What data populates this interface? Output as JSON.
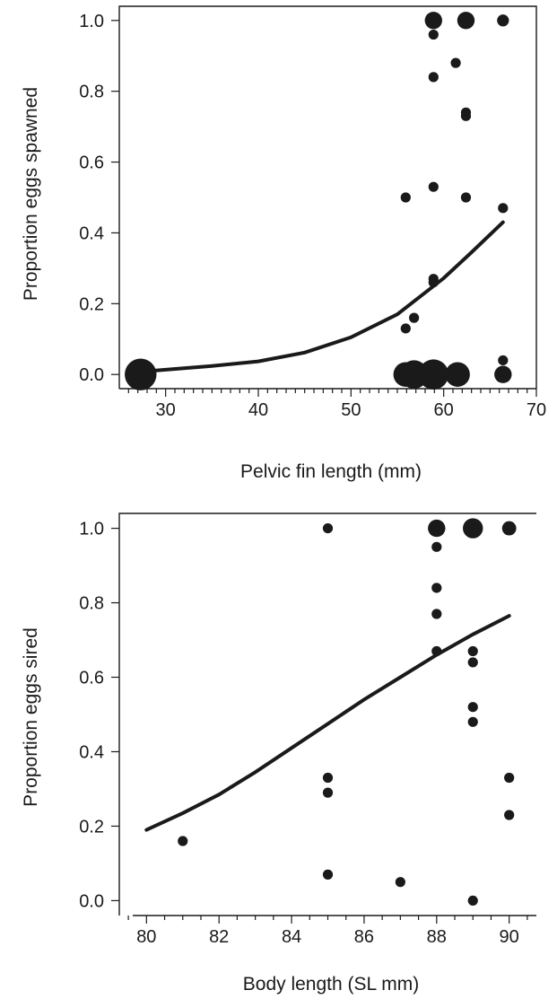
{
  "chart_data": [
    {
      "type": "scatter",
      "title": "",
      "xlabel": "Pelvic fin length (mm)",
      "ylabel": "Proportion eggs spawned",
      "xlim": [
        25,
        70
      ],
      "ylim": [
        -0.04,
        1.04
      ],
      "xticks": [
        "30",
        "40",
        "50",
        "60",
        "70"
      ],
      "xtick_values": [
        30,
        40,
        50,
        60,
        70
      ],
      "yticks": [
        "0.0",
        "0.2",
        "0.4",
        "0.6",
        "0.8",
        "1.0"
      ],
      "ytick_values": [
        0,
        0.2,
        0.4,
        0.6,
        0.8,
        1.0
      ],
      "minor_xticks": [
        26,
        27,
        28,
        29,
        31,
        32,
        33,
        34,
        35,
        36,
        37,
        38,
        39,
        41,
        42,
        43,
        44,
        45,
        46,
        47,
        48,
        49,
        51,
        52,
        53,
        54,
        55,
        56,
        57,
        58,
        59,
        61,
        62,
        63,
        64,
        65,
        66,
        67,
        68,
        69
      ],
      "grid": false,
      "frame": "left-top-right",
      "points": [
        {
          "x": 27.3,
          "y": 0.0,
          "n": 10
        },
        {
          "x": 55.9,
          "y": 0.0,
          "n": 6
        },
        {
          "x": 56.8,
          "y": 0.0,
          "n": 8
        },
        {
          "x": 58.9,
          "y": 0.0,
          "n": 9
        },
        {
          "x": 61.5,
          "y": 0.0,
          "n": 6
        },
        {
          "x": 66.4,
          "y": 0.0,
          "n": 3
        },
        {
          "x": 58.9,
          "y": 1.0,
          "n": 3
        },
        {
          "x": 62.4,
          "y": 1.0,
          "n": 3
        },
        {
          "x": 66.4,
          "y": 1.0,
          "n": 1.4
        },
        {
          "x": 58.9,
          "y": 0.96,
          "n": 1
        },
        {
          "x": 61.3,
          "y": 0.88,
          "n": 1
        },
        {
          "x": 58.9,
          "y": 0.84,
          "n": 1
        },
        {
          "x": 62.4,
          "y": 0.74,
          "n": 1
        },
        {
          "x": 62.4,
          "y": 0.73,
          "n": 1
        },
        {
          "x": 58.9,
          "y": 0.53,
          "n": 1
        },
        {
          "x": 55.9,
          "y": 0.5,
          "n": 1
        },
        {
          "x": 62.4,
          "y": 0.5,
          "n": 1
        },
        {
          "x": 66.4,
          "y": 0.47,
          "n": 1
        },
        {
          "x": 58.9,
          "y": 0.27,
          "n": 1
        },
        {
          "x": 58.9,
          "y": 0.26,
          "n": 1
        },
        {
          "x": 56.8,
          "y": 0.16,
          "n": 1
        },
        {
          "x": 55.9,
          "y": 0.13,
          "n": 1
        },
        {
          "x": 66.4,
          "y": 0.04,
          "n": 1
        }
      ],
      "fit_curve": {
        "x": [
          27.3,
          35,
          40,
          45,
          50,
          55,
          60,
          63,
          66.4
        ],
        "y": [
          0.008,
          0.024,
          0.037,
          0.062,
          0.105,
          0.17,
          0.272,
          0.345,
          0.43
        ]
      }
    },
    {
      "type": "scatter",
      "title": "",
      "xlabel": "Body length (SL mm)",
      "ylabel": "Proportion eggs sired",
      "xlim": [
        79.25,
        90.75
      ],
      "ylim": [
        -0.04,
        1.04
      ],
      "xticks": [
        "80",
        "82",
        "84",
        "86",
        "88",
        "90"
      ],
      "xtick_values": [
        80,
        82,
        84,
        86,
        88,
        90
      ],
      "yticks": [
        "0.0",
        "0.2",
        "0.4",
        "0.6",
        "0.8",
        "1.0"
      ],
      "ytick_values": [
        0,
        0.2,
        0.4,
        0.6,
        0.8,
        1.0
      ],
      "minor_xticks": [
        79.5,
        80.5,
        81,
        81.5,
        82.5,
        83,
        83.5,
        84.5,
        85,
        85.5,
        86.5,
        87,
        87.5,
        88.5,
        89,
        89.5,
        90.5
      ],
      "grid": false,
      "frame": "left-top",
      "points": [
        {
          "x": 85,
          "y": 1.0,
          "n": 1
        },
        {
          "x": 88,
          "y": 1.0,
          "n": 3
        },
        {
          "x": 89,
          "y": 1.0,
          "n": 4
        },
        {
          "x": 90,
          "y": 1.0,
          "n": 2
        },
        {
          "x": 88,
          "y": 0.95,
          "n": 1
        },
        {
          "x": 88,
          "y": 0.84,
          "n": 1
        },
        {
          "x": 88,
          "y": 0.77,
          "n": 1
        },
        {
          "x": 88,
          "y": 0.67,
          "n": 1
        },
        {
          "x": 89,
          "y": 0.67,
          "n": 1
        },
        {
          "x": 89,
          "y": 0.64,
          "n": 1
        },
        {
          "x": 89,
          "y": 0.52,
          "n": 1
        },
        {
          "x": 89,
          "y": 0.48,
          "n": 1
        },
        {
          "x": 85,
          "y": 0.33,
          "n": 1
        },
        {
          "x": 90,
          "y": 0.33,
          "n": 1
        },
        {
          "x": 85,
          "y": 0.29,
          "n": 1
        },
        {
          "x": 90,
          "y": 0.23,
          "n": 1
        },
        {
          "x": 81,
          "y": 0.16,
          "n": 1
        },
        {
          "x": 85,
          "y": 0.07,
          "n": 1
        },
        {
          "x": 87,
          "y": 0.05,
          "n": 1
        },
        {
          "x": 89,
          "y": 0.0,
          "n": 1
        }
      ],
      "fit_curve": {
        "x": [
          80,
          81,
          82,
          83,
          84,
          85,
          86,
          87,
          88,
          89,
          90
        ],
        "y": [
          0.19,
          0.235,
          0.285,
          0.345,
          0.41,
          0.475,
          0.54,
          0.6,
          0.66,
          0.715,
          0.765
        ]
      }
    }
  ]
}
